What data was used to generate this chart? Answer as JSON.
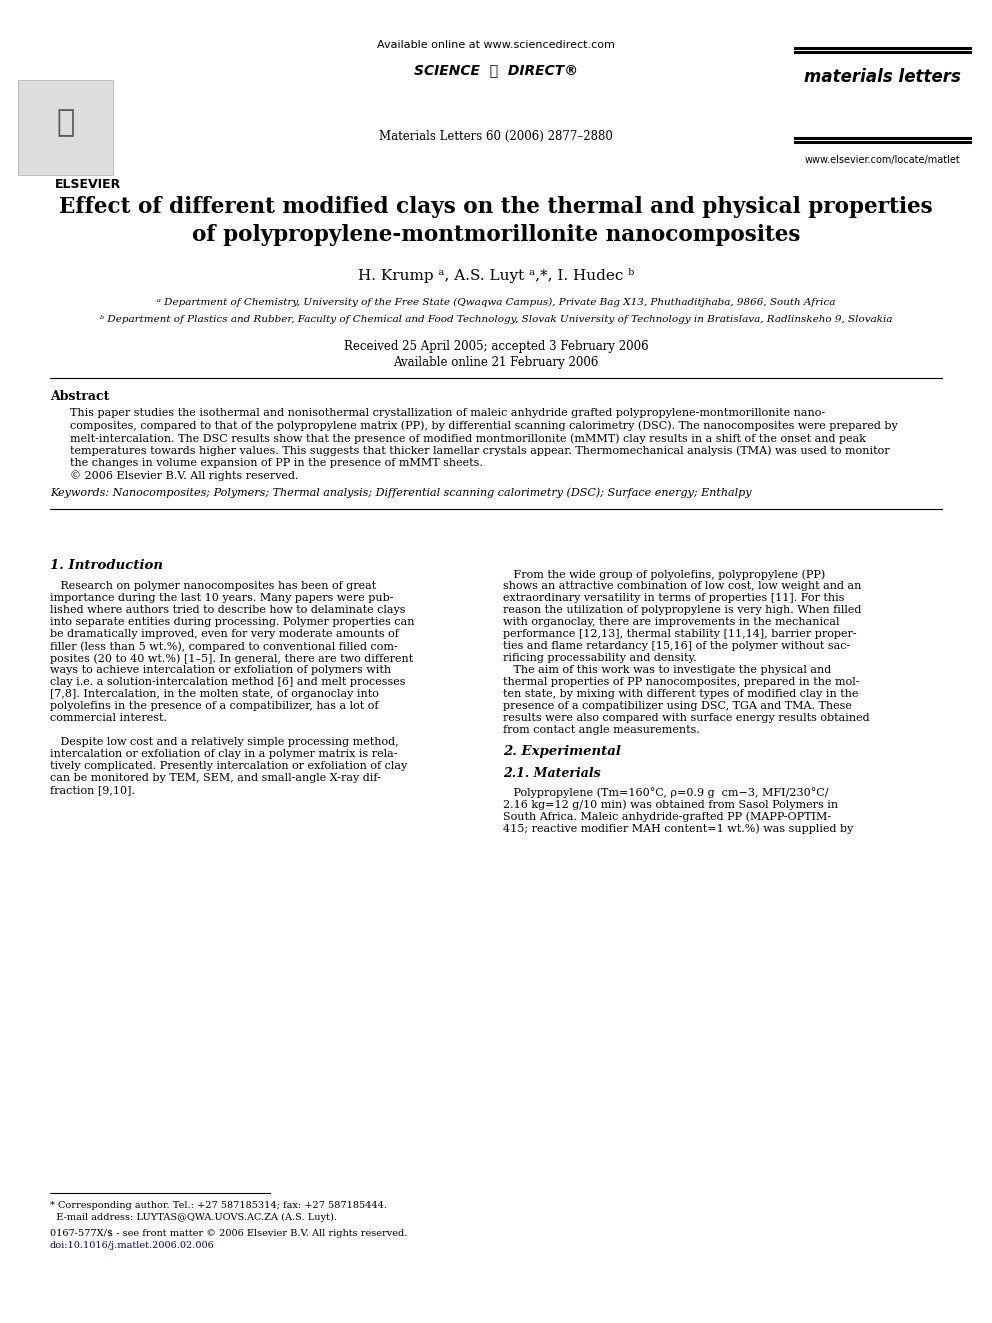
{
  "bg_color": "#ffffff",
  "header_available": "Available online at www.sciencedirect.com",
  "header_scidir": "SCIENCE ⓐ DIRECT®",
  "header_journal": "materials letters",
  "header_info": "Materials Letters 60 (2006) 2877–2880",
  "header_website": "www.elsevier.com/locate/matlet",
  "title_line1": "Effect of different modified clays on the thermal and physical properties",
  "title_line2": "of polypropylene-montmorillonite nanocomposites",
  "authors": "H. Krump ᵃ, A.S. Luyt ᵃ,*, I. Hudec ᵇ",
  "affil_a": "ᵃ Department of Chemistry, University of the Free State (Qwaqwa Campus), Private Bag X13, Phuthaditjhaba, 9866, South Africa",
  "affil_b": "ᵇ Department of Plastics and Rubber, Faculty of Chemical and Food Technology, Slovak University of Technology in Bratislava, Radlinskeho 9, Slovakia",
  "received": "Received 25 April 2005; accepted 3 February 2006",
  "available": "Available online 21 February 2006",
  "abstract_title": "Abstract",
  "abstract_lines": [
    "This paper studies the isothermal and nonisothermal crystallization of maleic anhydride grafted polypropylene-montmorillonite nano-",
    "composites, compared to that of the polypropylene matrix (PP), by differential scanning calorimetry (DSC). The nanocomposites were prepared by",
    "melt-intercalation. The DSC results show that the presence of modified montmorillonite (mMMT) clay results in a shift of the onset and peak",
    "temperatures towards higher values. This suggests that thicker lamellar crystals appear. Thermomechanical analysis (TMA) was used to monitor",
    "the changes in volume expansion of PP in the presence of mMMT sheets.",
    "© 2006 Elsevier B.V. All rights reserved."
  ],
  "keywords": "Keywords: Nanocomposites; Polymers; Thermal analysis; Differential scanning calorimetry (DSC); Surface energy; Enthalpy",
  "sec1_title": "1. Introduction",
  "col1_lines": [
    "   Research on polymer nanocomposites has been of great",
    "importance during the last 10 years. Many papers were pub-",
    "lished where authors tried to describe how to delaminate clays",
    "into separate entities during processing. Polymer properties can",
    "be dramatically improved, even for very moderate amounts of",
    "filler (less than 5 wt.%), compared to conventional filled com-",
    "posites (20 to 40 wt.%) [1–5]. In general, there are two different",
    "ways to achieve intercalation or exfoliation of polymers with",
    "clay i.e. a solution-intercalation method [6] and melt processes",
    "[7,8]. Intercalation, in the molten state, of organoclay into",
    "polyolefins in the presence of a compatibilizer, has a lot of",
    "commercial interest.",
    "",
    "   Despite low cost and a relatively simple processing method,",
    "intercalation or exfoliation of clay in a polymer matrix is rela-",
    "tively complicated. Presently intercalation or exfoliation of clay",
    "can be monitored by TEM, SEM, and small-angle X-ray dif-",
    "fraction [9,10]."
  ],
  "col2_lines_intro": [
    "   From the wide group of polyolefins, polypropylene (PP)",
    "shows an attractive combination of low cost, low weight and an",
    "extraordinary versatility in terms of properties [11]. For this",
    "reason the utilization of polypropylene is very high. When filled",
    "with organoclay, there are improvements in the mechanical",
    "performance [12,13], thermal stability [11,14], barrier proper-",
    "ties and flame retardancy [15,16] of the polymer without sac-",
    "rificing processability and density.",
    "   The aim of this work was to investigate the physical and",
    "thermal properties of PP nanocomposites, prepared in the mol-",
    "ten state, by mixing with different types of modified clay in the",
    "presence of a compatibilizer using DSC, TGA and TMA. These",
    "results were also compared with surface energy results obtained",
    "from contact angle measurements."
  ],
  "sec2_title": "2. Experimental",
  "sec21_title": "2.1. Materials",
  "col2_lines_mat": [
    "   Polypropylene (Tm=160°C, ρ=0.9 g  cm−3, MFI/230°C/",
    "2.16 kg=12 g/10 min) was obtained from Sasol Polymers in",
    "South Africa. Maleic anhydride-grafted PP (MAPP-OPTIM-",
    "415; reactive modifier MAH content=1 wt.%) was supplied by"
  ],
  "fn_line": "* Corresponding author. Tel.: +27 587185314; fax: +27 587185444.",
  "fn_email": "  E-mail address: LUYTAS@QWA.UOVS.AC.ZA (A.S. Luyt).",
  "fn_issn": "0167-577X/$ - see front matter © 2006 Elsevier B.V. All rights reserved.",
  "fn_doi": "doi:10.1016/j.matlet.2006.02.006"
}
